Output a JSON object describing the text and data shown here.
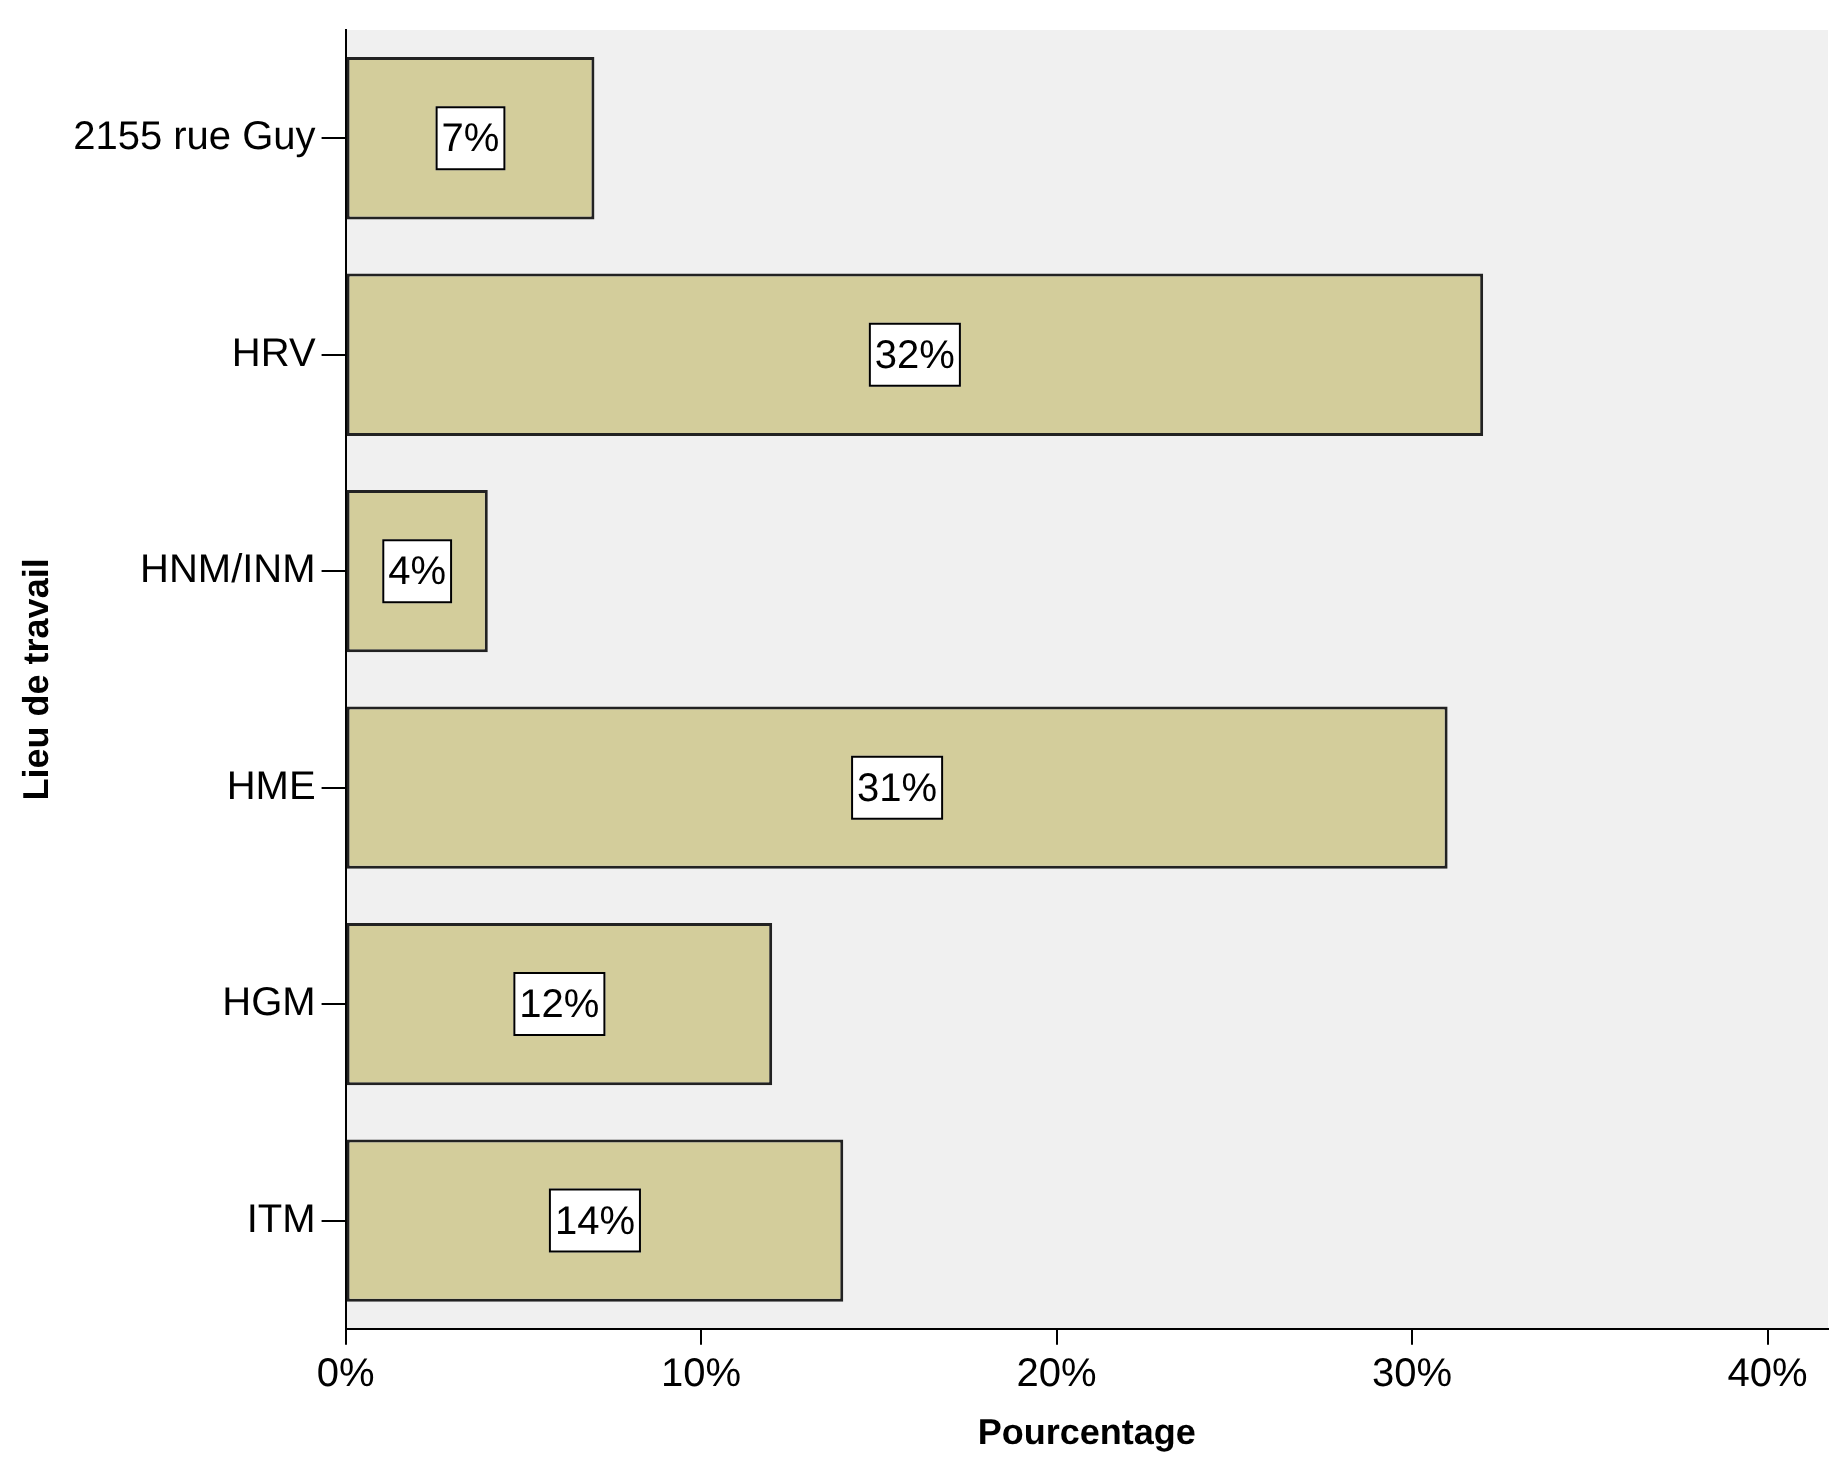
{
  "chart_data": {
    "type": "bar",
    "orientation": "horizontal",
    "xlabel": "Pourcentage",
    "ylabel": "Lieu de travail",
    "categories": [
      "2155 rue Guy",
      "HRV",
      "HNM/INM",
      "HME",
      "HGM",
      "ITM"
    ],
    "values": [
      7,
      32,
      4,
      31,
      12,
      14
    ],
    "value_labels": [
      "7%",
      "32%",
      "4%",
      "31%",
      "12%",
      "14%"
    ],
    "color": "#d3cd9b",
    "xlim": [
      0,
      41.7
    ],
    "xticks": [
      {
        "value": 0,
        "label": "0%"
      },
      {
        "value": 10,
        "label": "10%"
      },
      {
        "value": 20,
        "label": "20%"
      },
      {
        "value": 30,
        "label": "30%"
      },
      {
        "value": 40,
        "label": "40%"
      }
    ],
    "grid": false,
    "legend": false
  }
}
